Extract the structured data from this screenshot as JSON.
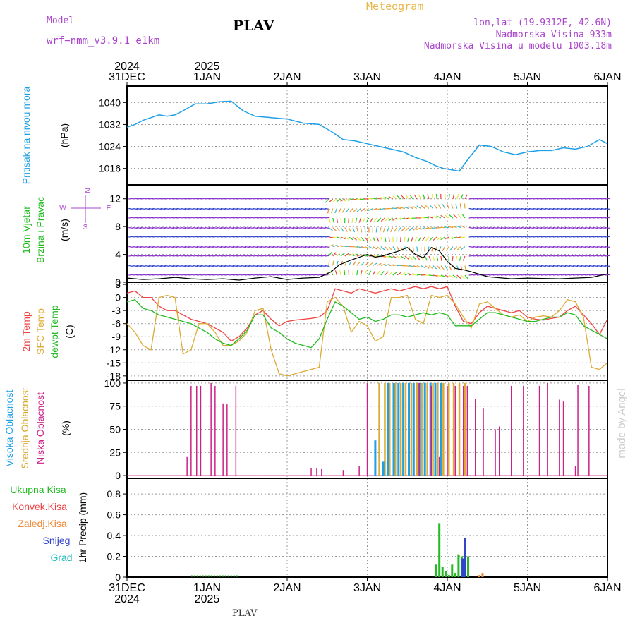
{
  "header": {
    "app_label": "Meteogram",
    "model_label": "Model",
    "model_name": "wrf−nmm_v3.9.1 e1km",
    "location_title": "PLAV",
    "coords": "lon,lat (19.9312E, 42.6N)",
    "elevation": "Nadmorska Visina 933m",
    "model_elevation": "Nadmorska Visina u modelu 1003.18m",
    "footer_title": "PLAV",
    "credit": "made by Angel"
  },
  "colors": {
    "pressure": "#1ea0e6",
    "wind_label": "#22bb22",
    "temp2m": "#ee4444",
    "sfc": "#ddaa33",
    "dewpt": "#22bb22",
    "high_cloud": "#1ea0e6",
    "mid_cloud": "#ddaa33",
    "low_cloud": "#cc2288",
    "total_rain": "#22bb22",
    "conv_rain": "#ee4444",
    "freezing": "#ee8833",
    "snow": "#3344cc",
    "hail": "#22bbbb",
    "purple": "#aa44cc",
    "gold": "#e8b84a"
  },
  "time_axis": {
    "top_years": [
      "2024",
      "2025"
    ],
    "top_ticks": [
      "31DEC",
      "1JAN",
      "2JAN",
      "3JAN",
      "4JAN",
      "5JAN",
      "6JAN"
    ],
    "bottom_ticks": [
      "31DEC",
      "1JAN",
      "2JAN",
      "3JAN",
      "4JAN",
      "5JAN",
      "6JAN"
    ],
    "bottom_years": [
      "2024",
      "2025"
    ],
    "day_offsets": [
      0,
      1,
      2,
      3,
      4,
      5,
      6
    ]
  },
  "chart_data": [
    {
      "id": "pressure",
      "type": "line",
      "ylabel": "Pritisak na nivou mora",
      "unit": "(hPa)",
      "yticks": [
        "1040",
        "1032",
        "1024",
        "1016"
      ],
      "ylim": [
        1010,
        1046
      ],
      "series": [
        {
          "x": [
            0,
            0.1,
            0.2,
            0.3,
            0.4,
            0.5,
            0.6,
            0.7,
            0.85,
            1.0,
            1.15,
            1.3,
            1.45,
            1.6,
            1.8,
            2.0,
            2.2,
            2.4,
            2.55,
            2.7,
            2.85,
            3.0,
            3.15,
            3.3,
            3.45,
            3.6,
            3.75,
            3.85,
            3.95,
            4.05,
            4.15,
            4.25,
            4.4,
            4.55,
            4.7,
            4.85,
            5.0,
            5.15,
            5.3,
            5.45,
            5.6,
            5.75,
            5.9,
            6.0
          ],
          "values": [
            1031,
            1032,
            1033.5,
            1034.5,
            1035.5,
            1035,
            1035.5,
            1037,
            1039.5,
            1039.5,
            1040.3,
            1040.5,
            1037,
            1035,
            1034.5,
            1034,
            1032.5,
            1032,
            1029.5,
            1026.5,
            1026,
            1025,
            1024,
            1023,
            1022,
            1020,
            1018.5,
            1017,
            1016,
            1015.5,
            1015,
            1019,
            1024.5,
            1024,
            1022,
            1021,
            1022,
            1022.5,
            1022.5,
            1023.5,
            1023,
            1024,
            1026.5,
            1025
          ]
        }
      ]
    },
    {
      "id": "wind",
      "type": "line",
      "ylabel_line1": "10m Vjetar",
      "ylabel_line2": "Brzina i Pravac",
      "unit": "(m/s)",
      "compass": {
        "n": "N",
        "s": "S",
        "e": "E",
        "w": "W"
      },
      "yticks": [
        "12",
        "8",
        "4",
        "0"
      ],
      "ylim": [
        0,
        14
      ],
      "series": [
        {
          "name": "speed",
          "x": [
            0,
            0.2,
            0.4,
            0.6,
            0.8,
            1.0,
            1.2,
            1.4,
            1.6,
            1.8,
            2.0,
            2.2,
            2.4,
            2.55,
            2.65,
            2.8,
            3.0,
            3.1,
            3.2,
            3.4,
            3.5,
            3.6,
            3.7,
            3.8,
            3.9,
            4.0,
            4.1,
            4.2,
            4.3,
            4.5,
            4.8,
            5.0,
            5.4,
            5.8,
            6.0
          ],
          "values": [
            0.6,
            0.4,
            0.5,
            0.7,
            0.5,
            0.4,
            0.5,
            0.3,
            0.6,
            0.8,
            0.4,
            0.6,
            0.7,
            1.5,
            2.5,
            3.2,
            4.0,
            3.6,
            3.8,
            4.5,
            5.0,
            4.0,
            3.5,
            5.0,
            4.5,
            3.0,
            2.0,
            1.8,
            1.5,
            0.8,
            0.5,
            0.6,
            0.5,
            0.7,
            1.2
          ]
        }
      ]
    },
    {
      "id": "temperature",
      "type": "line",
      "ylabel_line1": "2m Temp",
      "ylabel_line2": "SFC Temp",
      "ylabel_line3": "dewpt Temp",
      "unit": "(C)",
      "yticks": [
        "3",
        "0",
        "-3",
        "-6",
        "-9",
        "-12",
        "-15",
        "-18"
      ],
      "ylim": [
        -19,
        3.5
      ],
      "x": [
        0,
        0.1,
        0.2,
        0.3,
        0.4,
        0.5,
        0.6,
        0.7,
        0.8,
        0.9,
        1.0,
        1.1,
        1.2,
        1.3,
        1.4,
        1.5,
        1.6,
        1.7,
        1.8,
        1.9,
        2.0,
        2.1,
        2.2,
        2.3,
        2.4,
        2.5,
        2.6,
        2.7,
        2.8,
        2.9,
        3.0,
        3.1,
        3.2,
        3.3,
        3.4,
        3.5,
        3.6,
        3.7,
        3.8,
        3.9,
        4.0,
        4.1,
        4.2,
        4.3,
        4.4,
        4.5,
        4.6,
        4.7,
        4.8,
        4.9,
        5.0,
        5.1,
        5.2,
        5.3,
        5.4,
        5.5,
        5.6,
        5.7,
        5.8,
        5.9,
        6.0
      ],
      "series": [
        {
          "name": "2m",
          "values": [
            1,
            1.5,
            0,
            0,
            -2,
            -3,
            -3,
            -4,
            -5,
            -5.5,
            -6,
            -7,
            -8,
            -10,
            -9,
            -7,
            -4,
            -3,
            -5,
            -6.5,
            -5.5,
            -5.2,
            -5,
            -4.8,
            -4.5,
            -3,
            2,
            1.5,
            1,
            2,
            1.5,
            1,
            1.5,
            2,
            1.5,
            2,
            2.5,
            2,
            2.5,
            2,
            2.5,
            -2,
            -5.5,
            -6,
            -3.5,
            -2,
            -2.5,
            -3,
            -3.5,
            -3,
            -4.5,
            -5,
            -5.2,
            -4.8,
            -4.5,
            -3,
            -2,
            -4,
            -6,
            -8.5,
            -5
          ]
        },
        {
          "name": "SFC",
          "values": [
            -6,
            -8,
            -11,
            -12,
            0,
            0.5,
            0,
            -13,
            -12,
            -6,
            -6,
            -8,
            -11,
            -11,
            -10,
            -8,
            -3,
            -2.5,
            -12,
            -17.5,
            -18,
            -17.5,
            -17,
            -16.5,
            -16,
            -1,
            0,
            -2,
            -8,
            -5.5,
            -6.5,
            -10,
            -9,
            0,
            0,
            0.5,
            -5,
            -6,
            0.5,
            0,
            0.5,
            -1.5,
            -4.5,
            -7,
            -1.5,
            -1,
            -2.5,
            -4,
            -4.5,
            -4,
            -5.5,
            -4.5,
            -4.2,
            -4.5,
            -3,
            -0.5,
            -1,
            -4.5,
            -16,
            -16.5,
            -15
          ]
        },
        {
          "name": "dewpt",
          "values": [
            -1,
            -0.5,
            -2.5,
            -3,
            -4,
            -4.5,
            -5,
            -5.5,
            -6,
            -7,
            -8,
            -9.5,
            -10.5,
            -11,
            -9.5,
            -7.5,
            -4,
            -4,
            -7,
            -8,
            -9.5,
            -10.5,
            -11,
            -11.5,
            -9.5,
            -5,
            -1,
            -2,
            -3.5,
            -5,
            -4.5,
            -5.5,
            -5,
            -4,
            -4,
            -4.5,
            -4,
            -3.5,
            -4,
            -3.5,
            -4,
            -6.5,
            -6.5,
            -6.5,
            -5,
            -3.5,
            -3.5,
            -4,
            -4.5,
            -5,
            -5.5,
            -5.5,
            -5,
            -4.5,
            -4.5,
            -3.5,
            -4,
            -6.5,
            -7.5,
            -8.5,
            -9.5
          ]
        }
      ]
    },
    {
      "id": "cloud",
      "type": "bar",
      "ylabel_line1": "Visoka Oblacnost",
      "ylabel_line2": "Srednja Oblacnost",
      "ylabel_line3": "Niska Oblacnost",
      "unit": "(%)",
      "yticks": [
        "100",
        "75",
        "50",
        "25",
        "0"
      ],
      "ylim": [
        -3,
        103
      ],
      "series": [
        {
          "name": "low",
          "x": [
            0.75,
            0.8,
            0.87,
            0.92,
            1.05,
            1.1,
            1.2,
            1.25,
            1.36,
            2.3,
            2.37,
            2.43,
            2.7,
            2.9,
            3.0,
            3.65,
            3.8,
            3.9,
            4.0,
            4.1,
            4.2,
            4.25,
            4.35,
            4.45,
            4.6,
            4.65,
            4.8,
            4.95,
            5.15,
            5.25,
            5.4,
            5.45,
            5.6,
            5.63,
            5.77
          ],
          "values": [
            20,
            97,
            97,
            97,
            100,
            97,
            78,
            77,
            97,
            8,
            8,
            7,
            6,
            10,
            100,
            100,
            97,
            20,
            97,
            97,
            97,
            97,
            83,
            73,
            50,
            53,
            97,
            97,
            97,
            100,
            82,
            80,
            10,
            98,
            97
          ]
        },
        {
          "name": "mid",
          "x": [
            3.15,
            3.22,
            3.28,
            3.35,
            3.42,
            3.48,
            3.55,
            3.62,
            3.68,
            3.75,
            3.82,
            3.88,
            3.95,
            4.02,
            4.08,
            4.15,
            4.22
          ],
          "values": [
            100,
            100,
            100,
            100,
            100,
            100,
            100,
            100,
            100,
            100,
            100,
            100,
            100,
            100,
            100,
            100,
            100
          ]
        },
        {
          "name": "high",
          "x": [
            3.1,
            3.2,
            3.26,
            3.33,
            3.39,
            3.45,
            3.52,
            3.58,
            3.65,
            3.72,
            3.79,
            3.85,
            3.92
          ],
          "values": [
            38,
            15,
            100,
            100,
            100,
            100,
            100,
            100,
            100,
            100,
            100,
            100,
            100
          ]
        }
      ]
    },
    {
      "id": "precip",
      "type": "bar",
      "legend": [
        "Ukupna Kisa",
        "Konvek.Kisa",
        "Zaledj.Kisa",
        "Snijeg",
        "Grad"
      ],
      "ylabel": "1hr Precip",
      "unit": "(mm)",
      "yticks": [
        "0.8",
        "0.6",
        "0.4",
        "0.2",
        "0"
      ],
      "ylim": [
        0,
        0.95
      ],
      "series": [
        {
          "name": "Ukupna Kisa",
          "x": [
            3.86,
            3.9,
            3.94,
            3.98,
            4.02,
            4.06,
            4.1,
            4.14,
            4.18,
            4.22,
            4.26
          ],
          "values": [
            0.12,
            0.52,
            0.1,
            0.06,
            0.02,
            0.12,
            0.04,
            0.22,
            0.2,
            0.38,
            0.2
          ]
        },
        {
          "name": "Snijeg",
          "x": [
            4.19,
            4.22
          ],
          "values": [
            0.18,
            0.38
          ]
        },
        {
          "name": "Zaledj.Kisa",
          "x": [
            4.4,
            4.44
          ],
          "values": [
            0.02,
            0.04
          ]
        }
      ]
    }
  ]
}
